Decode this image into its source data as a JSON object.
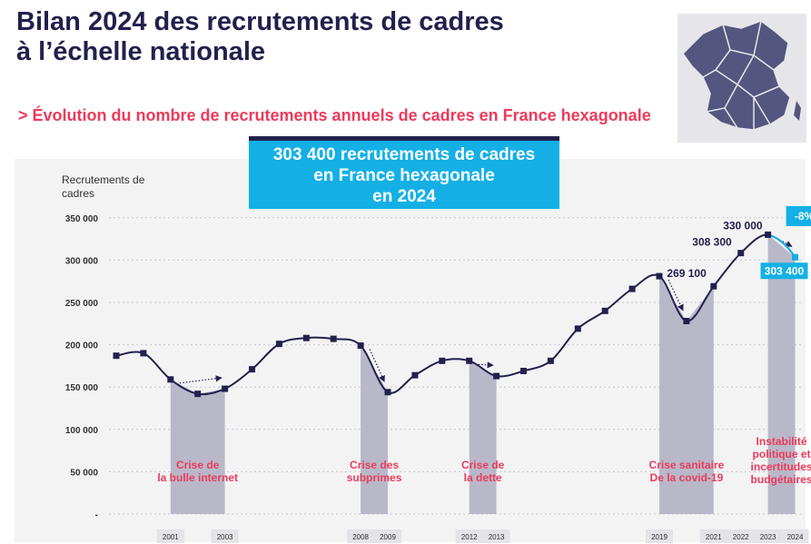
{
  "header": {
    "title_line1": "Bilan 2024 des recrutements de cadres",
    "title_line2": "à l’échelle nationale",
    "subtitle": "> Évolution du nombre de recrutements annuels de cadres en France hexagonale"
  },
  "callout": {
    "line1": "303 400 recrutements de cadres",
    "line2": "en France hexagonale",
    "line3": "en 2024"
  },
  "colors": {
    "title": "#22214d",
    "accent_pink": "#ec3a5b",
    "accent_blue": "#14b0e5",
    "line": "#22214d",
    "crisis_band": "#b9b8c8",
    "panel": "#f3f3f4"
  },
  "map": {
    "icon": "france-regions-map-icon"
  },
  "chart_data": {
    "type": "line",
    "ylabel": "Recrutements de cadres",
    "ylim": [
      0,
      350000
    ],
    "yticks": [
      {
        "value": 350000,
        "label": "350 000"
      },
      {
        "value": 300000,
        "label": "300 000"
      },
      {
        "value": 250000,
        "label": "250 000"
      },
      {
        "value": 200000,
        "label": "200 000"
      },
      {
        "value": 150000,
        "label": "150 000"
      },
      {
        "value": 100000,
        "label": "100 000"
      },
      {
        "value": 50000,
        "label": "50 000"
      },
      {
        "value": 0,
        "label": "-"
      }
    ],
    "x": [
      1999,
      2000,
      2001,
      2002,
      2003,
      2004,
      2005,
      2006,
      2007,
      2008,
      2009,
      2010,
      2011,
      2012,
      2013,
      2014,
      2015,
      2016,
      2017,
      2018,
      2019,
      2020,
      2021,
      2022,
      2023,
      2024
    ],
    "values": [
      187000,
      190000,
      159000,
      142000,
      148000,
      171000,
      201000,
      208000,
      207000,
      199000,
      144000,
      164000,
      181000,
      181000,
      163000,
      169000,
      181000,
      219000,
      240000,
      266000,
      281000,
      228000,
      269100,
      308300,
      330000,
      303400
    ],
    "x_labels": [
      {
        "year": 2001,
        "label": "2001"
      },
      {
        "year": 2003,
        "label": "2003"
      },
      {
        "year": 2008,
        "label": "2008"
      },
      {
        "year": 2009,
        "label": "2009"
      },
      {
        "year": 2012,
        "label": "2012"
      },
      {
        "year": 2013,
        "label": "2013"
      },
      {
        "year": 2019,
        "label": "2019"
      },
      {
        "year": 2021,
        "label": "2021"
      },
      {
        "year": 2022,
        "label": "2022"
      },
      {
        "year": 2023,
        "label": "2023"
      },
      {
        "year": 2024,
        "label": "2024"
      }
    ],
    "data_labels": [
      {
        "year": 2021,
        "text": "269 100"
      },
      {
        "year": 2022,
        "text": "308 300"
      },
      {
        "year": 2023,
        "text": "330 000"
      }
    ],
    "highlight": {
      "year": 2024,
      "value_label": "303 400",
      "change_label": "-8%"
    },
    "crises": [
      {
        "from": 2001,
        "to": 2003,
        "lines": [
          "Crise de",
          "la bulle internet"
        ]
      },
      {
        "from": 2008,
        "to": 2009,
        "lines": [
          "Crise des",
          "subprimes"
        ]
      },
      {
        "from": 2012,
        "to": 2013,
        "lines": [
          "Crise de",
          "la dette"
        ]
      },
      {
        "from": 2019,
        "to": 2021,
        "lines": [
          "Crise sanitaire",
          "De la covid-19"
        ]
      },
      {
        "from": 2023,
        "to": 2024,
        "lines": [
          "Instabilité",
          "politique et",
          "incertitudes",
          "budgétaires"
        ]
      }
    ],
    "trend_arrows": [
      {
        "from": 2001,
        "to": 2003
      },
      {
        "from": 2008,
        "to": 2009
      },
      {
        "from": 2012,
        "to": 2013
      },
      {
        "from": 2019,
        "to": 2020
      },
      {
        "from": 2023,
        "to": 2024
      }
    ]
  }
}
